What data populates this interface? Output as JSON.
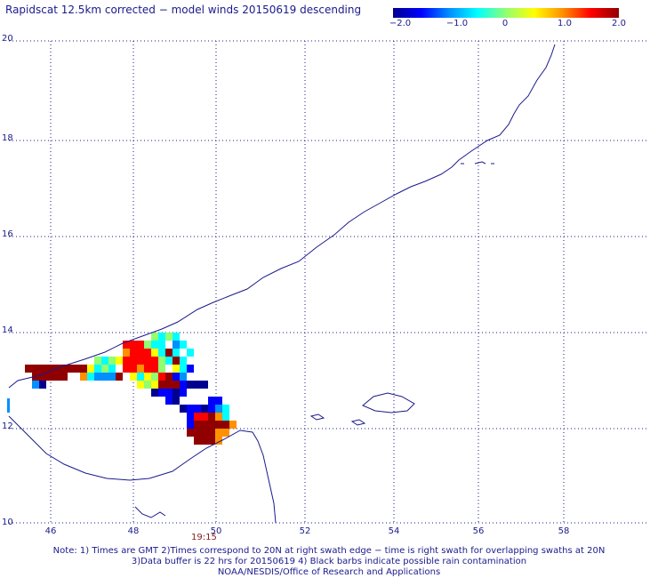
{
  "title": "Rapidscat 12.5km corrected − model winds 20150619 descending",
  "colorbar": {
    "labels": [
      "−2.0",
      "−1.0",
      "0",
      "1.0",
      "2.0"
    ],
    "stops": [
      "#000090",
      "#0000ff",
      "#0090ff",
      "#00ffff",
      "#90ff70",
      "#ffff00",
      "#ff9000",
      "#ff0000",
      "#900000"
    ]
  },
  "axes": {
    "x_ticks": [
      "46",
      "48",
      "50",
      "52",
      "54",
      "56",
      "58"
    ],
    "y_ticks": [
      "10",
      "12",
      "14",
      "16",
      "18",
      "20"
    ]
  },
  "swath_time": "19:15",
  "notes": [
    "Note: 1) Times are GMT 2)Times correspond to 20N at right swath edge − time is right swath for overlapping swaths at 20N",
    "3)Data buffer is 22 hrs for 20150619 4) Black barbs indicate possible rain contamination",
    "NOAA/NESDIS/Office of Research and Applications"
  ]
}
